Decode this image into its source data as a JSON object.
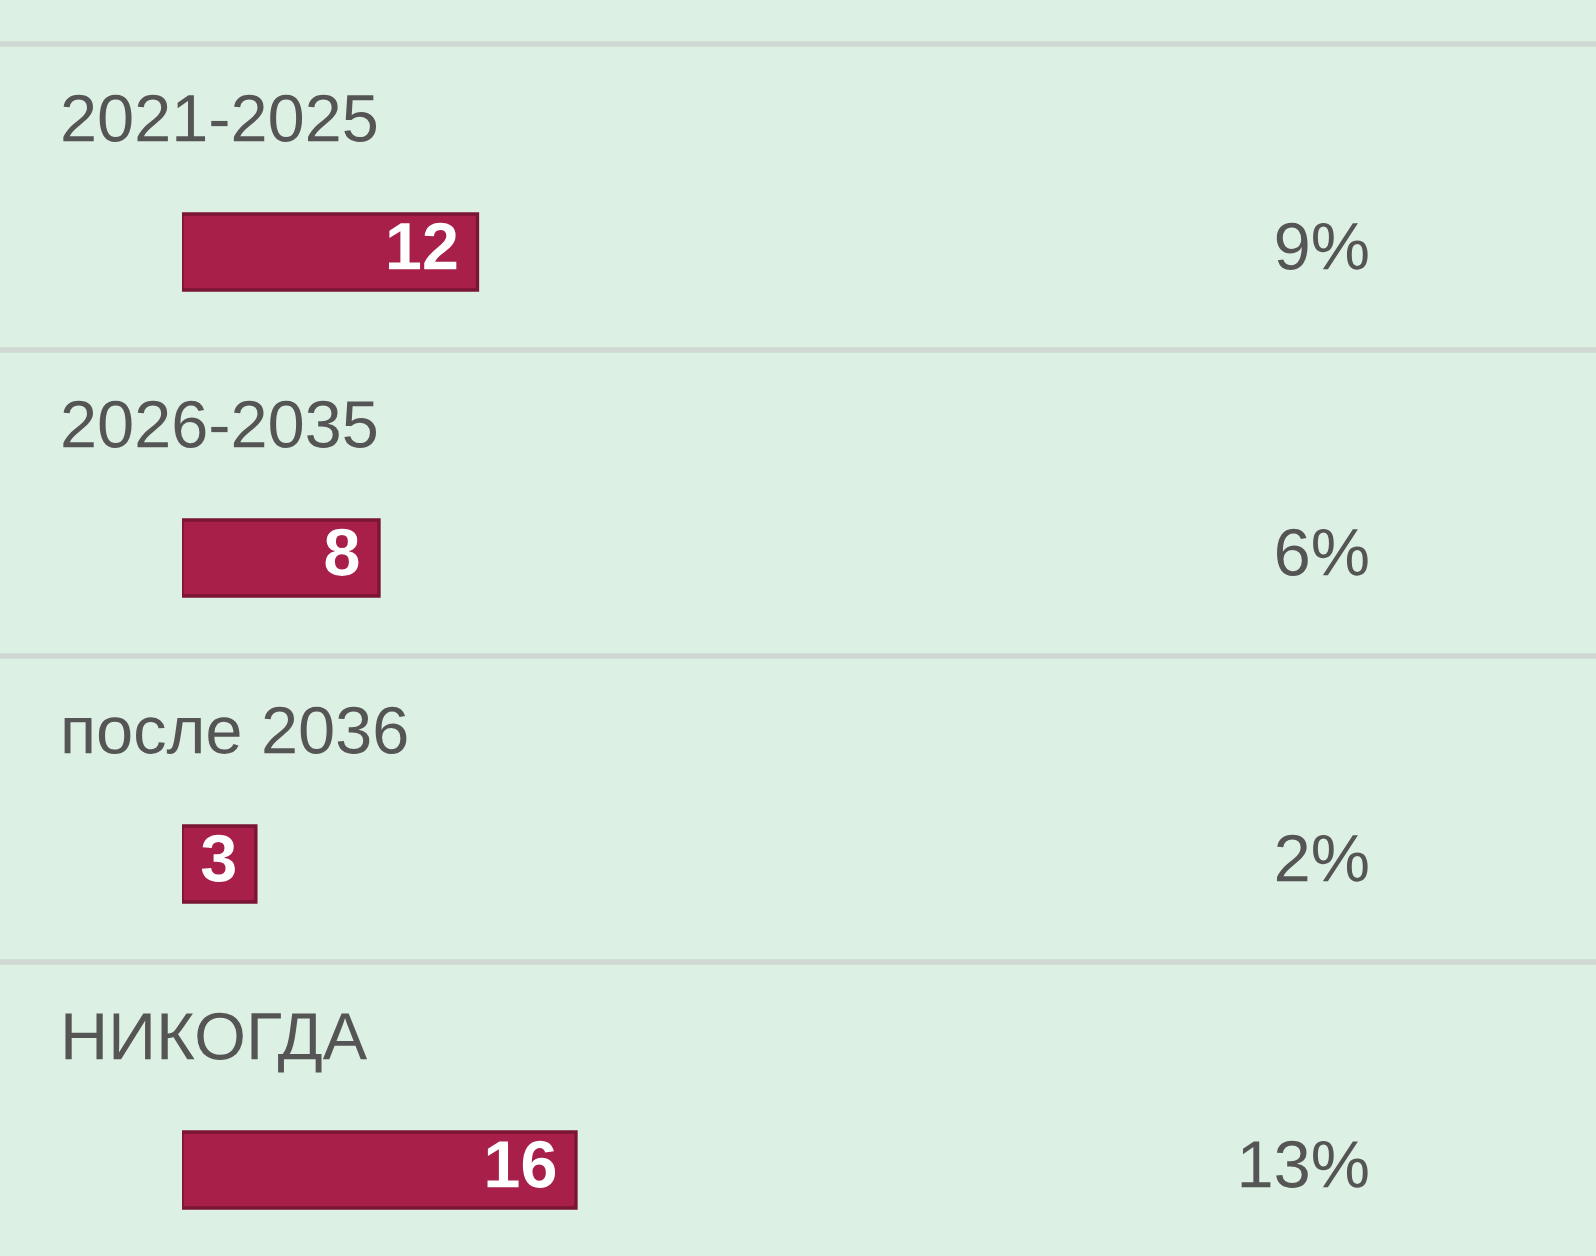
{
  "chart_data": {
    "type": "bar",
    "orientation": "horizontal",
    "categories": [
      "2021-2025",
      "2026-2035",
      "после 2036",
      "НИКОГДА"
    ],
    "values": [
      12,
      8,
      3,
      16
    ],
    "color": "#a8204a",
    "data_labels": true,
    "annotations": [
      "9%",
      "6%",
      "2%",
      "13%"
    ]
  }
}
